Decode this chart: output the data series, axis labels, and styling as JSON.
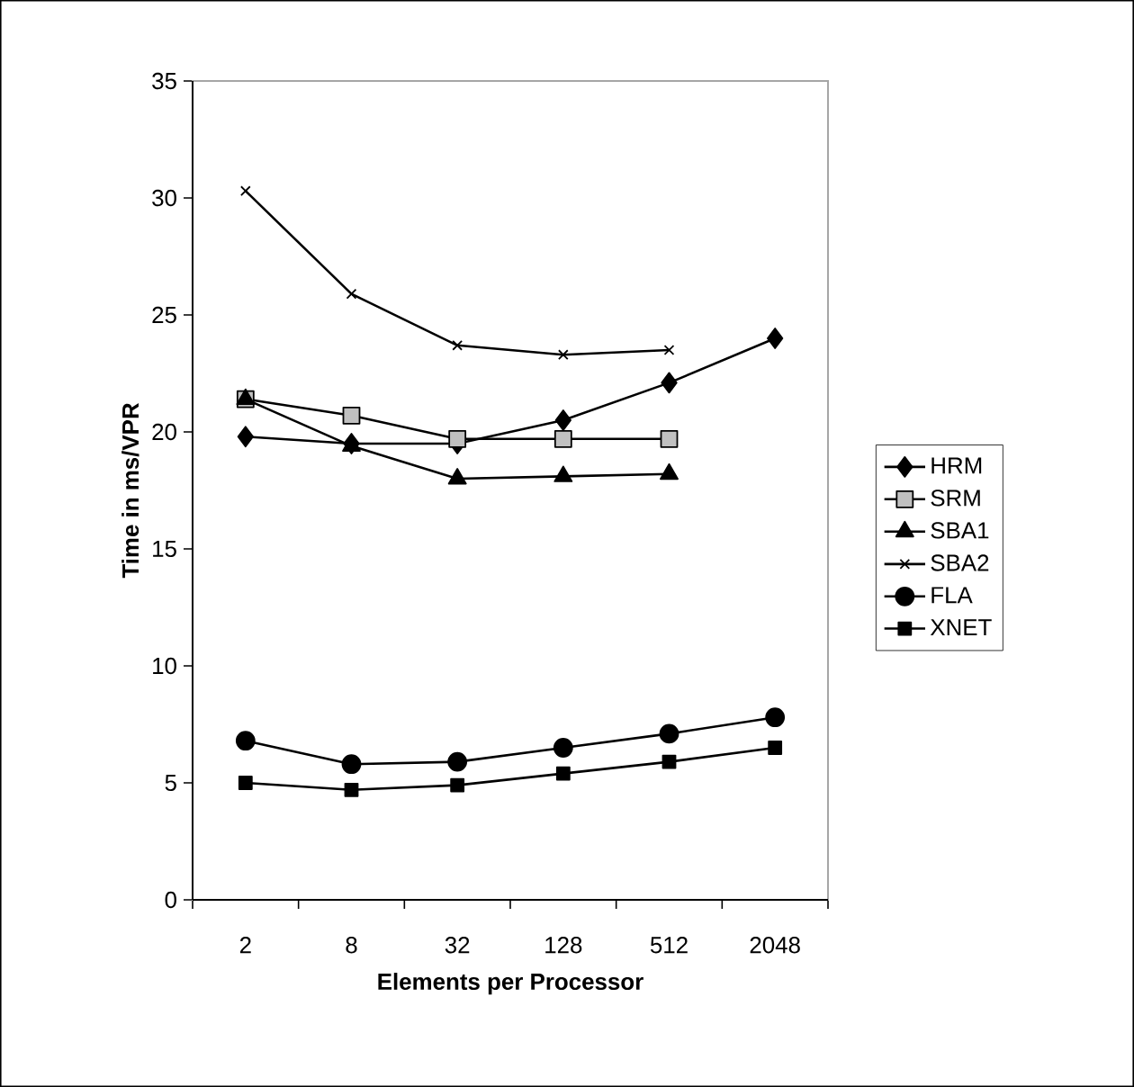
{
  "chart_data": {
    "type": "line",
    "xlabel": "Elements per Processor",
    "ylabel": "Time in ms/VPR",
    "categories": [
      "2",
      "8",
      "32",
      "128",
      "512",
      "2048"
    ],
    "ylim": [
      0,
      35
    ],
    "yticks": [
      0,
      5,
      10,
      15,
      20,
      25,
      30,
      35
    ],
    "grid": false,
    "legend": "right",
    "line_style": "solid",
    "series": [
      {
        "name": "HRM",
        "color": "#000000",
        "marker": "diamond",
        "values": [
          19.8,
          19.5,
          19.5,
          20.5,
          22.1,
          24.0
        ]
      },
      {
        "name": "SRM",
        "color": "#c0c0c0",
        "marker": "square",
        "values": [
          21.4,
          20.7,
          19.7,
          19.7,
          19.7,
          null
        ]
      },
      {
        "name": "SBA1",
        "color": "#000000",
        "marker": "triangle",
        "values": [
          21.4,
          19.4,
          18.0,
          18.1,
          18.2,
          null
        ]
      },
      {
        "name": "SBA2",
        "color": "#000000",
        "marker": "cross",
        "values": [
          30.3,
          25.9,
          23.7,
          23.3,
          23.5,
          null
        ]
      },
      {
        "name": "FLA",
        "color": "#000000",
        "marker": "circle",
        "values": [
          6.8,
          5.8,
          5.9,
          6.5,
          7.1,
          7.8
        ]
      },
      {
        "name": "XNET",
        "color": "#000000",
        "marker": "square",
        "values": [
          5.0,
          4.7,
          4.9,
          5.4,
          5.9,
          6.5
        ]
      }
    ]
  }
}
